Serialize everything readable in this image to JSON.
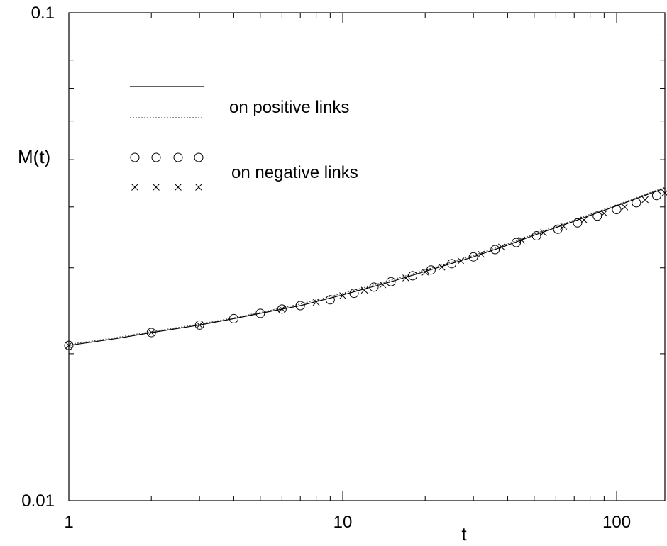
{
  "chart_data": {
    "type": "line",
    "xlabel": "t",
    "ylabel": "M(t)",
    "x_scale": "log",
    "y_scale": "log",
    "xlim": [
      1,
      150
    ],
    "ylim": [
      0.01,
      0.1
    ],
    "grid": false,
    "legend_position": "top-left",
    "x_ticks": [
      {
        "value": 1,
        "label": "1"
      },
      {
        "value": 10,
        "label": "10"
      },
      {
        "value": 100,
        "label": "100"
      }
    ],
    "y_ticks": [
      {
        "value": 0.01,
        "label": "0.01"
      },
      {
        "value": 0.1,
        "label": "0.1"
      }
    ],
    "legend": [
      {
        "label": "on positive links",
        "series": [
          "solid",
          "dotted"
        ]
      },
      {
        "label": "on negative links",
        "series": [
          "circles",
          "crosses"
        ]
      }
    ],
    "series": [
      {
        "style": "solid",
        "x": [
          1,
          1.5,
          2,
          3,
          4,
          5,
          7,
          10,
          15,
          20,
          30,
          40,
          50,
          70,
          100,
          150
        ],
        "y": [
          0.0208,
          0.0215,
          0.0221,
          0.0229,
          0.0236,
          0.0242,
          0.0251,
          0.0264,
          0.0281,
          0.0295,
          0.0316,
          0.0334,
          0.035,
          0.0374,
          0.0402,
          0.0437
        ]
      },
      {
        "style": "dotted",
        "x": [
          1,
          1.5,
          2,
          3,
          4,
          5,
          7,
          10,
          15,
          20,
          30,
          40,
          50,
          70,
          100,
          150
        ],
        "y": [
          0.0209,
          0.0216,
          0.0222,
          0.023,
          0.0237,
          0.0243,
          0.0253,
          0.0266,
          0.0283,
          0.0297,
          0.0318,
          0.0336,
          0.0352,
          0.0376,
          0.0404,
          0.0439
        ]
      },
      {
        "style": "circles",
        "x": [
          1,
          2,
          3,
          4,
          5,
          6,
          7,
          9,
          11,
          13,
          15,
          18,
          21,
          25,
          30,
          36,
          43,
          51,
          61,
          72,
          85,
          100,
          118,
          140
        ],
        "y": [
          0.0208,
          0.0221,
          0.0229,
          0.0236,
          0.0242,
          0.0247,
          0.0251,
          0.0258,
          0.0266,
          0.0274,
          0.0281,
          0.0289,
          0.0297,
          0.0306,
          0.0316,
          0.0327,
          0.0338,
          0.0349,
          0.036,
          0.0371,
          0.0383,
          0.0395,
          0.0408,
          0.0422
        ]
      },
      {
        "style": "crosses",
        "x": [
          1,
          2,
          3,
          6,
          8,
          10,
          12,
          14,
          17,
          20,
          23,
          27,
          32,
          38,
          45,
          54,
          64,
          76,
          90,
          107,
          127,
          150
        ],
        "y": [
          0.0208,
          0.0221,
          0.0229,
          0.0247,
          0.0255,
          0.0263,
          0.027,
          0.0277,
          0.0286,
          0.0294,
          0.0301,
          0.031,
          0.032,
          0.0331,
          0.0342,
          0.0354,
          0.0365,
          0.0376,
          0.0388,
          0.04,
          0.0414,
          0.0427
        ]
      }
    ]
  }
}
